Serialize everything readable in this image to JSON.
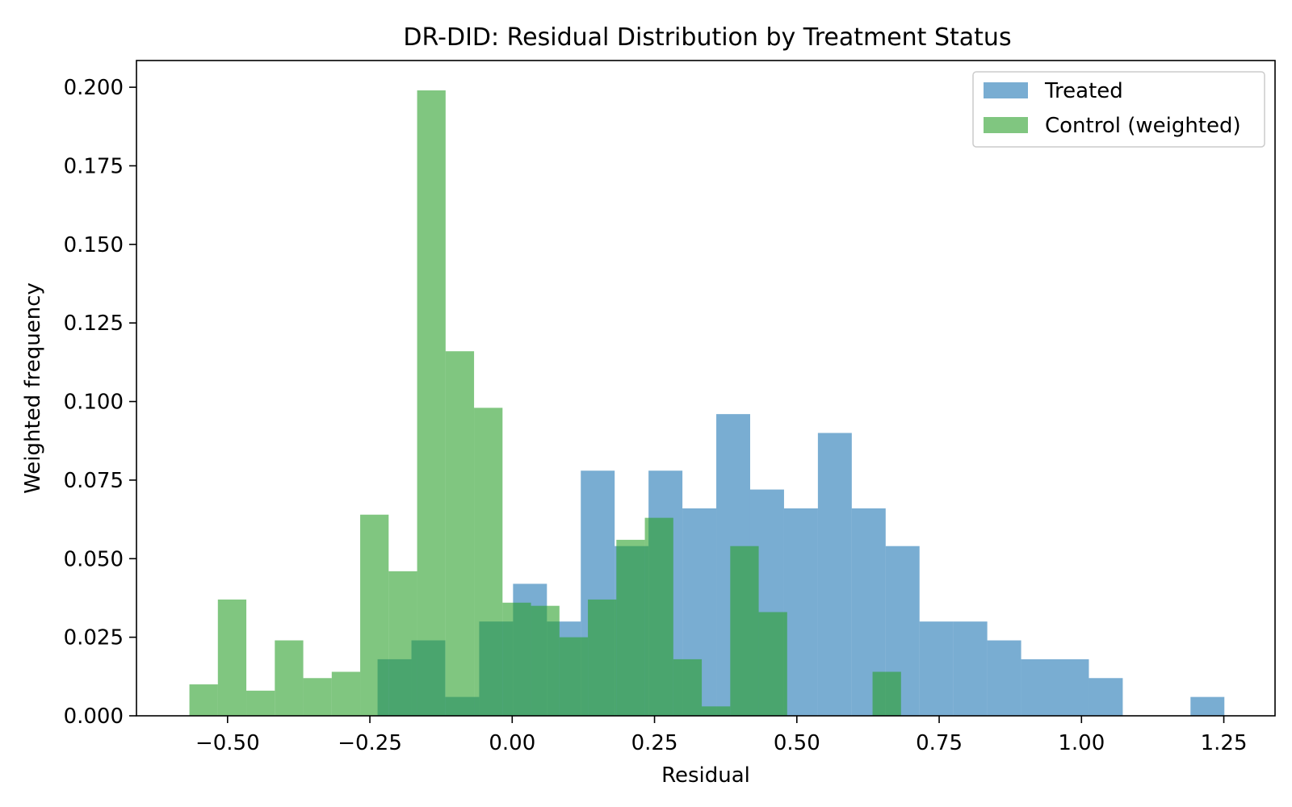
{
  "chart_data": {
    "type": "bar",
    "title": "DR-DID: Residual Distribution by Treatment Status",
    "xlabel": "Residual",
    "ylabel": "Weighted frequency",
    "xlim": [
      -0.66,
      1.34
    ],
    "ylim": [
      0,
      0.2085
    ],
    "x_ticks": [
      "−0.50",
      "−0.25",
      "0.00",
      "0.25",
      "0.50",
      "0.75",
      "1.00",
      "1.25"
    ],
    "x_tick_values": [
      -0.5,
      -0.25,
      0.0,
      0.25,
      0.5,
      0.75,
      1.0,
      1.25
    ],
    "y_ticks": [
      "0.000",
      "0.025",
      "0.050",
      "0.075",
      "0.100",
      "0.125",
      "0.150",
      "0.175",
      "0.200"
    ],
    "y_tick_values": [
      0,
      0.025,
      0.05,
      0.075,
      0.1,
      0.125,
      0.15,
      0.175,
      0.2
    ],
    "grid": false,
    "legend_position": "top-right",
    "series": [
      {
        "name": "Treated",
        "color": "#1f77b4",
        "opacity": 0.6,
        "x0": [
          -0.2365,
          -0.177,
          -0.1175,
          -0.058,
          0.0015,
          0.061,
          0.1205,
          0.18,
          0.2395,
          0.299,
          0.3585,
          0.418,
          0.4775,
          0.537,
          0.5965,
          0.656,
          0.7155,
          0.775,
          0.8345,
          0.894,
          0.9535,
          1.013,
          1.0725,
          1.132,
          1.1915
        ],
        "x1": [
          -0.177,
          -0.1175,
          -0.058,
          0.0015,
          0.061,
          0.1205,
          0.18,
          0.2395,
          0.299,
          0.3585,
          0.418,
          0.4775,
          0.537,
          0.5965,
          0.656,
          0.7155,
          0.775,
          0.8345,
          0.894,
          0.9535,
          1.013,
          1.0725,
          1.132,
          1.1915,
          1.251
        ],
        "values": [
          0.018,
          0.024,
          0.006,
          0.03,
          0.042,
          0.03,
          0.078,
          0.054,
          0.078,
          0.066,
          0.096,
          0.072,
          0.066,
          0.09,
          0.066,
          0.054,
          0.03,
          0.03,
          0.024,
          0.018,
          0.018,
          0.012,
          0.0,
          0.0,
          0.006
        ]
      },
      {
        "name": "Control (weighted)",
        "color": "#2ca02c",
        "opacity": 0.6,
        "x0": [
          -0.567,
          -0.517,
          -0.467,
          -0.417,
          -0.367,
          -0.317,
          -0.267,
          -0.217,
          -0.167,
          -0.117,
          -0.067,
          -0.017,
          0.033,
          0.083,
          0.133,
          0.183,
          0.233,
          0.283,
          0.333,
          0.383,
          0.433,
          0.483,
          0.533,
          0.583,
          0.633
        ],
        "x1": [
          -0.517,
          -0.467,
          -0.417,
          -0.367,
          -0.317,
          -0.267,
          -0.217,
          -0.167,
          -0.117,
          -0.067,
          -0.017,
          0.033,
          0.083,
          0.133,
          0.183,
          0.233,
          0.283,
          0.333,
          0.383,
          0.433,
          0.483,
          0.533,
          0.583,
          0.633,
          0.683
        ],
        "values": [
          0.01,
          0.037,
          0.008,
          0.024,
          0.012,
          0.014,
          0.064,
          0.046,
          0.199,
          0.116,
          0.098,
          0.036,
          0.035,
          0.025,
          0.037,
          0.056,
          0.063,
          0.018,
          0.003,
          0.054,
          0.033,
          0.0,
          0.0,
          0.0,
          0.014
        ]
      }
    ]
  }
}
